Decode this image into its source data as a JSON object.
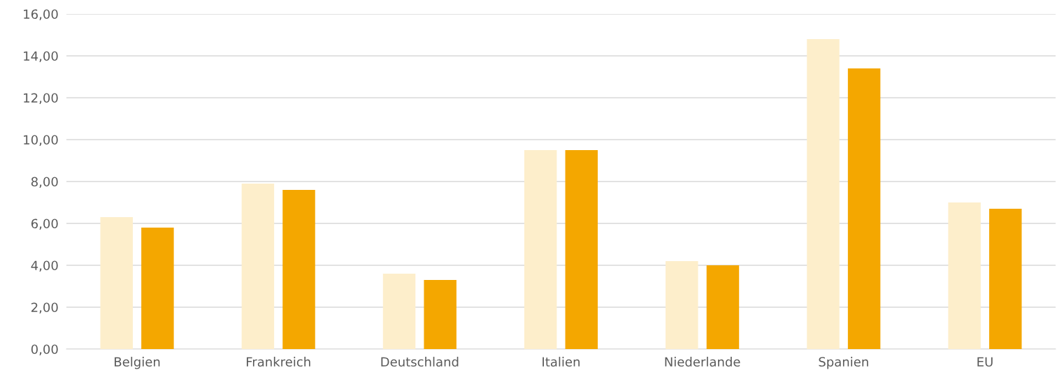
{
  "chart_data": {
    "type": "bar",
    "categories": [
      "Belgien",
      "Frankreich",
      "Deutschland",
      "Italien",
      "Niederlande",
      "Spanien",
      "EU"
    ],
    "series": [
      {
        "color": "#fdeecb",
        "values": [
          6.3,
          7.9,
          3.6,
          9.5,
          4.2,
          14.8,
          7.0
        ]
      },
      {
        "color": "#f4a700",
        "values": [
          5.8,
          7.6,
          3.3,
          9.5,
          4.0,
          13.4,
          6.7
        ]
      }
    ],
    "ylim": [
      0,
      16
    ],
    "yticks": [
      {
        "value": 0,
        "label": "0,00"
      },
      {
        "value": 2,
        "label": "2,00"
      },
      {
        "value": 4,
        "label": "4,00"
      },
      {
        "value": 6,
        "label": "6,00"
      },
      {
        "value": 8,
        "label": "8,00"
      },
      {
        "value": 10,
        "label": "10,00"
      },
      {
        "value": 12,
        "label": "12,00"
      },
      {
        "value": 14,
        "label": "14,00"
      },
      {
        "value": 16,
        "label": "16,00"
      }
    ],
    "grid": "y",
    "legend": false
  }
}
